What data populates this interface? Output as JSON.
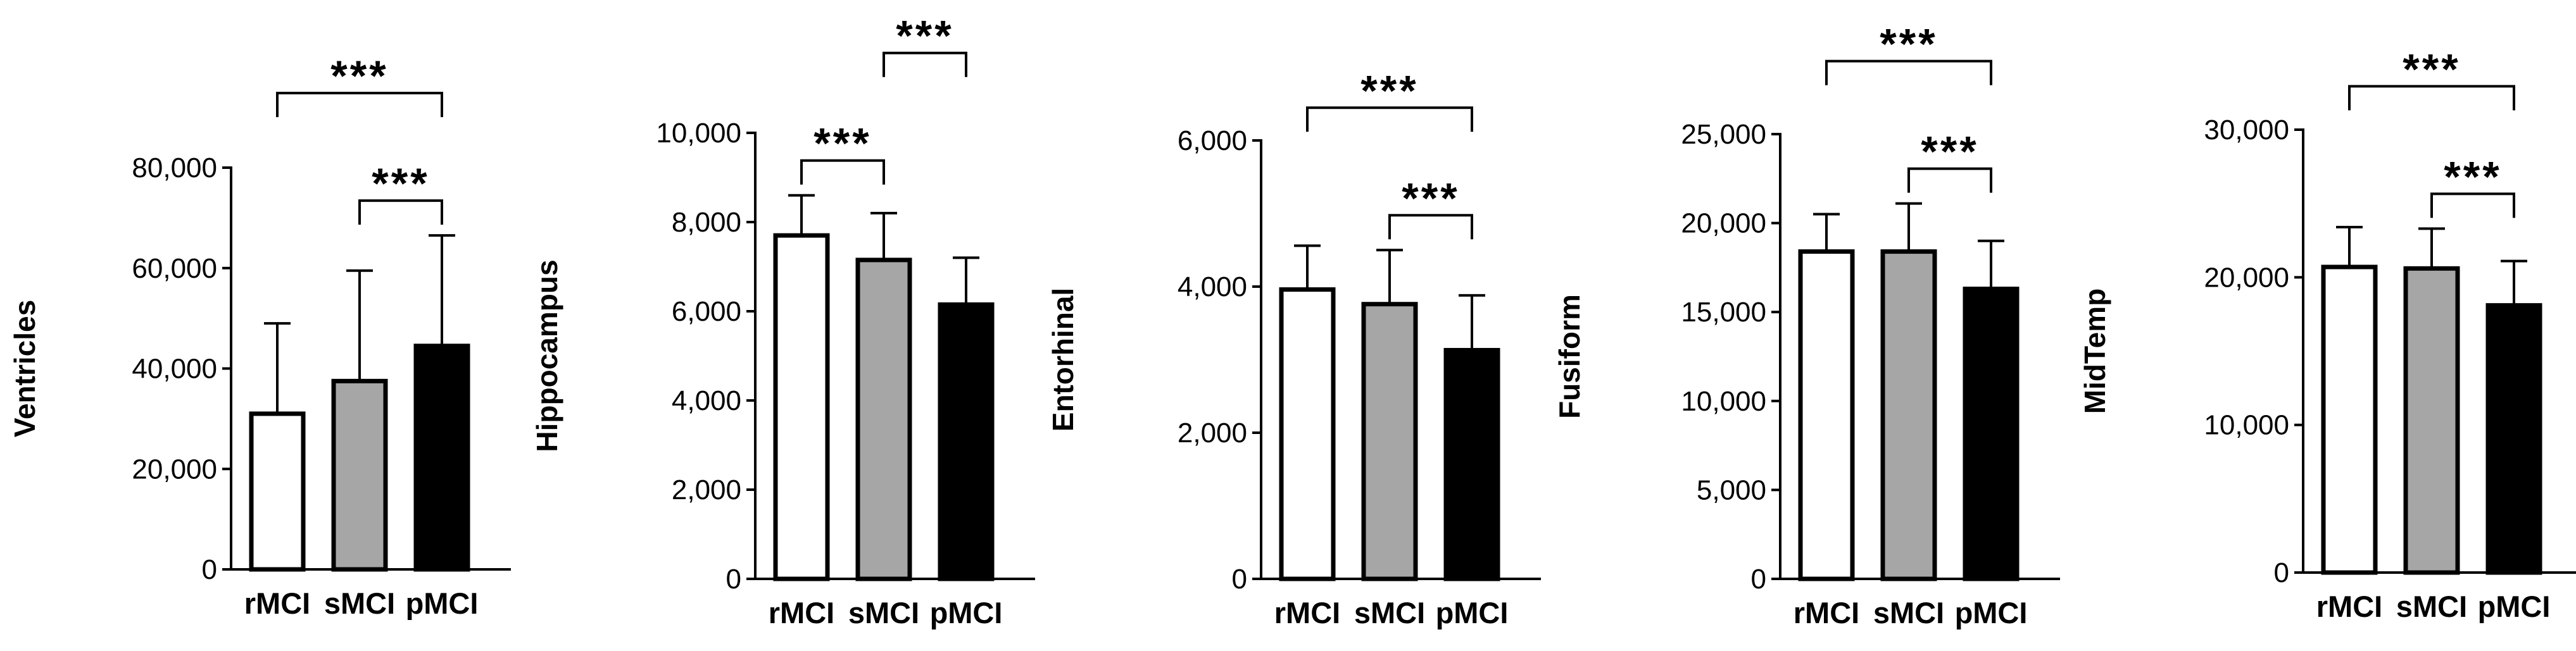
{
  "chart_data": [
    {
      "type": "bar",
      "ylabel": "Ventricles",
      "categories": [
        "rMCI",
        "sMCI",
        "pMCI"
      ],
      "series": [
        {
          "values": [
            31000,
            37500,
            44500
          ],
          "errors": [
            18000,
            22000,
            22000
          ],
          "fills": [
            "#ffffff",
            "#a6a6a6",
            "#000000"
          ]
        }
      ],
      "ylim": [
        0,
        80000
      ],
      "yticks": [
        "0",
        "20,000",
        "40,000",
        "60,000",
        "80,000"
      ],
      "significance": [
        {
          "from": 0,
          "to": 2,
          "label": "***"
        },
        {
          "from": 1,
          "to": 2,
          "label": "***"
        }
      ]
    },
    {
      "type": "bar",
      "ylabel": "Hippocampus",
      "categories": [
        "rMCI",
        "sMCI",
        "pMCI"
      ],
      "series": [
        {
          "values": [
            7700,
            7150,
            6150
          ],
          "errors": [
            900,
            1050,
            1050
          ],
          "fills": [
            "#ffffff",
            "#a6a6a6",
            "#000000"
          ]
        }
      ],
      "ylim": [
        0,
        10000
      ],
      "yticks": [
        "0",
        "2,000",
        "4,000",
        "6,000",
        "8,000",
        "10,000"
      ],
      "significance": [
        {
          "from": 0,
          "to": 2,
          "label": "***"
        },
        {
          "from": 0,
          "to": 1,
          "label": "***"
        },
        {
          "from": 1,
          "to": 2,
          "label": "***"
        }
      ]
    },
    {
      "type": "bar",
      "ylabel": "Entorhinal",
      "categories": [
        "rMCI",
        "sMCI",
        "pMCI"
      ],
      "series": [
        {
          "values": [
            3960,
            3760,
            3130
          ],
          "errors": [
            600,
            740,
            750
          ],
          "fills": [
            "#ffffff",
            "#a6a6a6",
            "#000000"
          ]
        }
      ],
      "ylim": [
        0,
        6000
      ],
      "yticks": [
        "0",
        "2,000",
        "4,000",
        "6,000"
      ],
      "significance": [
        {
          "from": 0,
          "to": 2,
          "label": "***"
        },
        {
          "from": 1,
          "to": 2,
          "label": "***"
        }
      ]
    },
    {
      "type": "bar",
      "ylabel": "Fusiform",
      "categories": [
        "rMCI",
        "sMCI",
        "pMCI"
      ],
      "series": [
        {
          "values": [
            18400,
            18400,
            16300
          ],
          "errors": [
            2100,
            2700,
            2700
          ],
          "fills": [
            "#ffffff",
            "#a6a6a6",
            "#000000"
          ]
        }
      ],
      "ylim": [
        0,
        25000
      ],
      "yticks": [
        "0",
        "5,000",
        "10,000",
        "15,000",
        "20,000",
        "25,000"
      ],
      "significance": [
        {
          "from": 0,
          "to": 2,
          "label": "***"
        },
        {
          "from": 1,
          "to": 2,
          "label": "***"
        }
      ]
    },
    {
      "type": "bar",
      "ylabel": "MidTemp",
      "categories": [
        "rMCI",
        "sMCI",
        "pMCI"
      ],
      "series": [
        {
          "values": [
            20700,
            20600,
            18100
          ],
          "errors": [
            2700,
            2700,
            3000
          ],
          "fills": [
            "#ffffff",
            "#a6a6a6",
            "#000000"
          ]
        }
      ],
      "ylim": [
        0,
        30000
      ],
      "yticks": [
        "0",
        "10,000",
        "20,000",
        "30,000"
      ],
      "significance": [
        {
          "from": 0,
          "to": 2,
          "label": "***"
        },
        {
          "from": 1,
          "to": 2,
          "label": "***"
        }
      ]
    }
  ]
}
